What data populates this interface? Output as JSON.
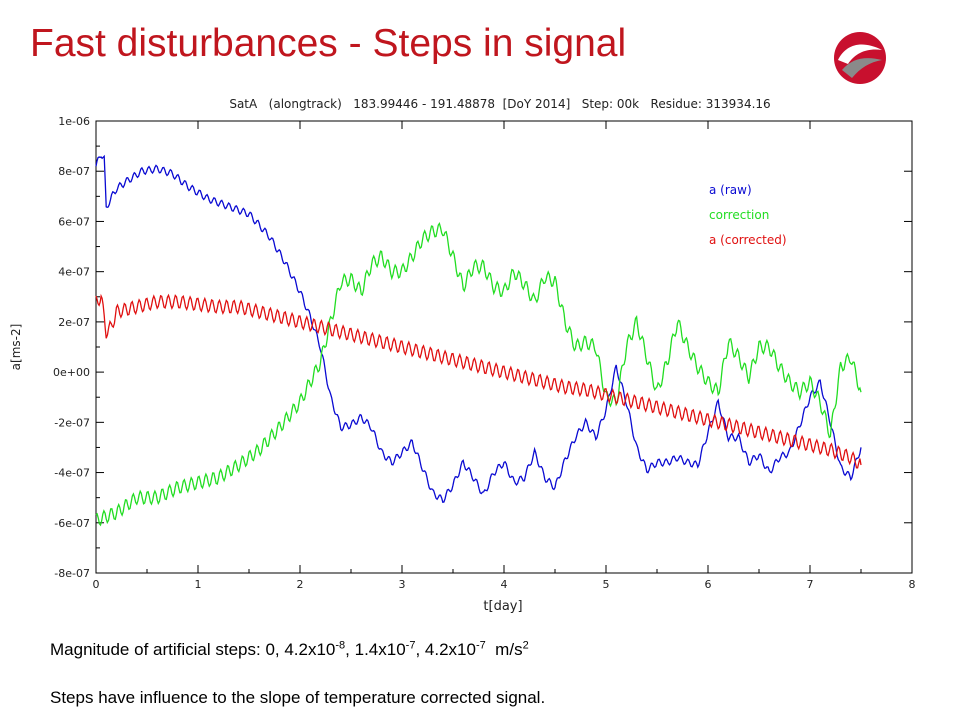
{
  "slide": {
    "title": "Fast disturbances - Steps in signal",
    "caption1": {
      "prefix": "Magnitude of artificial steps: 0, 4.2x10",
      "exp1": "-8",
      "sep1": ", 1.4x10",
      "exp2": "-7",
      "sep2": ", 4.2x10",
      "exp3": "-7",
      "unit": "  m/s",
      "unit_exp": "2"
    },
    "caption2": "Steps have influence to the slope of temperature corrected signal."
  },
  "colors": {
    "title": "#c0161e",
    "raw": "#0a0ad2",
    "correction": "#22dd22",
    "corrected": "#e01010",
    "logo_red": "#c8102e",
    "logo_grey": "#8a8a8a"
  },
  "chart_data": {
    "type": "line",
    "title": "SatA   (alongtrack)   183.99446 - 191.48878  [DoY 2014]   Step: 00k   Residue: 313934.16",
    "xlabel": "t[day]",
    "ylabel": "a[ms-2]",
    "xlim": [
      0,
      8
    ],
    "ylim": [
      -8e-07,
      1e-06
    ],
    "x_ticks": [
      0,
      1,
      2,
      3,
      4,
      5,
      6,
      7,
      8
    ],
    "y_ticks": [
      -8e-07,
      -6e-07,
      -4e-07,
      -2e-07,
      0,
      2e-07,
      4e-07,
      6e-07,
      8e-07,
      1e-06
    ],
    "y_tick_labels": [
      "-8e-07",
      "-6e-07",
      "-4e-07",
      "-2e-07",
      "0e+00",
      "2e-07",
      "4e-07",
      "6e-07",
      "8e-07",
      "1e-06"
    ],
    "grid": false,
    "legend_position": "top-right, inside",
    "series": [
      {
        "name": "a (raw)",
        "color": "#0a0ad2",
        "x": [
          0,
          0.05,
          0.08,
          0.1,
          0.13,
          0.2,
          0.3,
          0.45,
          0.6,
          0.75,
          0.9,
          1.1,
          1.3,
          1.5,
          1.7,
          1.85,
          2.0,
          2.1,
          2.2,
          2.3,
          2.4,
          2.5,
          2.6,
          2.7,
          2.8,
          2.9,
          3.0,
          3.1,
          3.2,
          3.3,
          3.4,
          3.5,
          3.6,
          3.7,
          3.8,
          3.9,
          4.0,
          4.1,
          4.2,
          4.3,
          4.4,
          4.5,
          4.6,
          4.7,
          4.8,
          4.9,
          5.0,
          5.1,
          5.2,
          5.3,
          5.4,
          5.5,
          5.6,
          5.7,
          5.8,
          5.9,
          6.0,
          6.1,
          6.2,
          6.3,
          6.4,
          6.5,
          6.6,
          6.7,
          6.8,
          6.9,
          7.0,
          7.1,
          7.2,
          7.3,
          7.4,
          7.5
        ],
        "values": [
          8.2e-07,
          8.7e-07,
          8.5e-07,
          6.5e-07,
          6.8e-07,
          7.3e-07,
          7.6e-07,
          8e-07,
          8.1e-07,
          7.9e-07,
          7.4e-07,
          6.9e-07,
          6.6e-07,
          6.3e-07,
          5.4e-07,
          4.4e-07,
          3.2e-07,
          2.2e-07,
          1e-07,
          -1e-07,
          -2.2e-07,
          -2.1e-07,
          -1.8e-07,
          -2.2e-07,
          -3.2e-07,
          -3.6e-07,
          -3.2e-07,
          -2.8e-07,
          -3.8e-07,
          -4.8e-07,
          -5.1e-07,
          -4.5e-07,
          -3.6e-07,
          -4.2e-07,
          -4.9e-07,
          -4e-07,
          -3.6e-07,
          -4.4e-07,
          -4.2e-07,
          -3.2e-07,
          -4.2e-07,
          -4.6e-07,
          -3.5e-07,
          -2.6e-07,
          -2e-07,
          -2.6e-07,
          -1.5e-07,
          2e-08,
          -1.2e-07,
          -3e-07,
          -3.9e-07,
          -3.6e-07,
          -3.6e-07,
          -3.4e-07,
          -3.6e-07,
          -3.7e-07,
          -2.4e-07,
          -1.2e-07,
          -2.6e-07,
          -2.6e-07,
          -3.6e-07,
          -3.3e-07,
          -4e-07,
          -3.4e-07,
          -3.2e-07,
          -2.1e-07,
          -1e-07,
          -4e-08,
          -2e-07,
          -3.8e-07,
          -4.2e-07,
          -3e-07
        ]
      },
      {
        "name": "correction",
        "color": "#22dd22",
        "x": [
          0,
          0.2,
          0.4,
          0.6,
          0.8,
          1.0,
          1.2,
          1.4,
          1.6,
          1.8,
          2.0,
          2.1,
          2.2,
          2.3,
          2.4,
          2.5,
          2.6,
          2.7,
          2.8,
          2.9,
          3.0,
          3.1,
          3.2,
          3.3,
          3.4,
          3.5,
          3.6,
          3.7,
          3.8,
          3.9,
          4.0,
          4.1,
          4.2,
          4.3,
          4.4,
          4.5,
          4.6,
          4.7,
          4.8,
          4.9,
          5.0,
          5.1,
          5.2,
          5.3,
          5.4,
          5.5,
          5.6,
          5.7,
          5.8,
          5.9,
          6.0,
          6.1,
          6.2,
          6.3,
          6.4,
          6.5,
          6.6,
          6.7,
          6.8,
          6.9,
          7.0,
          7.1,
          7.2,
          7.3,
          7.4,
          7.5
        ],
        "values": [
          -5.9e-07,
          -5.6e-07,
          -5e-07,
          -5e-07,
          -4.6e-07,
          -4.4e-07,
          -4.2e-07,
          -3.7e-07,
          -3.1e-07,
          -2.2e-07,
          -1.2e-07,
          -4e-08,
          4e-08,
          2e-07,
          3.6e-07,
          3.7e-07,
          3.2e-07,
          4.3e-07,
          4.6e-07,
          4e-07,
          4e-07,
          4.6e-07,
          5.3e-07,
          5.6e-07,
          5.7e-07,
          4.6e-07,
          3.4e-07,
          4.2e-07,
          4.2e-07,
          3.4e-07,
          3.2e-07,
          4e-07,
          3.5e-07,
          2.8e-07,
          3.8e-07,
          3.6e-07,
          2e-07,
          1e-07,
          1.2e-07,
          1e-07,
          -1e-07,
          -1.2e-07,
          1e-07,
          2e-07,
          6e-08,
          -8e-08,
          4e-08,
          2e-07,
          1e-07,
          2e-08,
          -4e-08,
          -8e-08,
          1.2e-07,
          6e-08,
          -2e-08,
          1e-07,
          1e-07,
          2e-08,
          -4e-08,
          -8e-08,
          -4e-08,
          -1.2e-07,
          -2.5e-07,
          2e-08,
          6e-08,
          -8e-08
        ]
      },
      {
        "name": "a (corrected)",
        "color": "#e01010",
        "x": [
          0,
          0.05,
          0.1,
          0.15,
          0.2,
          0.4,
          0.6,
          0.8,
          1.0,
          1.2,
          1.4,
          1.6,
          1.8,
          2.0,
          2.2,
          2.4,
          2.6,
          2.8,
          3.0,
          3.2,
          3.4,
          3.6,
          3.8,
          4.0,
          4.2,
          4.4,
          4.6,
          4.8,
          5.0,
          5.2,
          5.4,
          5.6,
          5.8,
          6.0,
          6.2,
          6.4,
          6.6,
          6.8,
          7.0,
          7.2,
          7.4,
          7.5
        ],
        "values": [
          2.8e-07,
          3e-07,
          1.6e-07,
          1.8e-07,
          2.4e-07,
          2.6e-07,
          2.8e-07,
          2.8e-07,
          2.7e-07,
          2.6e-07,
          2.6e-07,
          2.4e-07,
          2.2e-07,
          2e-07,
          1.8e-07,
          1.6e-07,
          1.4e-07,
          1.2e-07,
          1e-07,
          8e-08,
          6e-08,
          4e-08,
          2e-08,
          0.0,
          -2e-08,
          -4e-08,
          -6e-08,
          -7e-08,
          -9e-08,
          -1.1e-07,
          -1.3e-07,
          -1.5e-07,
          -1.7e-07,
          -1.9e-07,
          -2.1e-07,
          -2.3e-07,
          -2.5e-07,
          -2.7e-07,
          -2.9e-07,
          -3.1e-07,
          -3.4e-07,
          -3.7e-07
        ]
      }
    ]
  }
}
